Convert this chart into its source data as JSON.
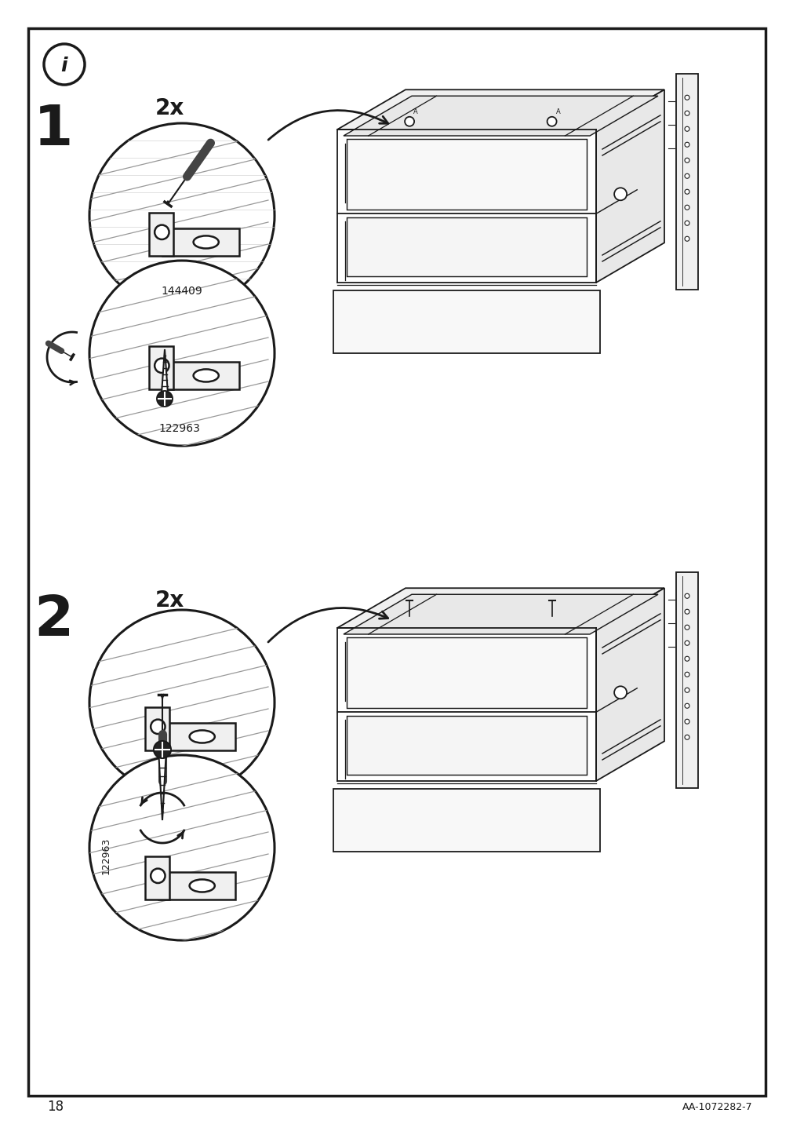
{
  "page_number": "18",
  "document_id": "AA-1072282-7",
  "background_color": "#ffffff",
  "line_color": "#1a1a1a",
  "mid_gray": "#555555",
  "light_gray": "#aaaaaa",
  "fill_light": "#f0f0f0",
  "fill_white": "#ffffff",
  "part_number_1": "144409",
  "part_number_2": "122963",
  "multiplier": "2x"
}
